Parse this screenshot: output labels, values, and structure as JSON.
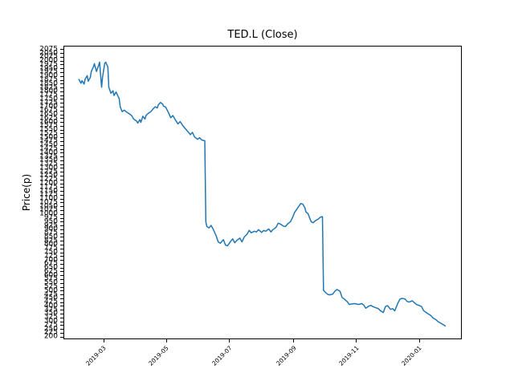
{
  "figure": {
    "background": "#ffffff",
    "axis_color": "#000000"
  },
  "chart_data": {
    "type": "line",
    "title": "TED.L (Close)",
    "xlabel": "",
    "ylabel": "Price(p)",
    "grid": false,
    "legend": "none",
    "line_color": "#1f77b4",
    "line_width": 1.5,
    "x_ticks": [
      "2019-03",
      "2019-05",
      "2019-07",
      "2019-09",
      "2019-11",
      "2020-01"
    ],
    "y_ticks": {
      "min": 200,
      "max": 2075,
      "step": 25
    },
    "xlim": [
      "2019-01-21",
      "2020-02-11"
    ],
    "ylim": [
      185,
      2100
    ],
    "series": [
      {
        "name": "Close",
        "x": [
          "2019-02-05",
          "2019-02-07",
          "2019-02-08",
          "2019-02-10",
          "2019-02-11",
          "2019-02-13",
          "2019-02-14",
          "2019-02-16",
          "2019-02-17",
          "2019-02-19",
          "2019-02-20",
          "2019-02-22",
          "2019-02-24",
          "2019-02-25",
          "2019-02-27",
          "2019-02-28",
          "2019-03-02",
          "2019-03-03",
          "2019-03-05",
          "2019-03-06",
          "2019-03-08",
          "2019-03-10",
          "2019-03-11",
          "2019-03-13",
          "2019-03-14",
          "2019-03-16",
          "2019-03-17",
          "2019-03-19",
          "2019-03-21",
          "2019-03-23",
          "2019-03-26",
          "2019-03-28",
          "2019-03-30",
          "2019-04-02",
          "2019-04-03",
          "2019-04-05",
          "2019-04-06",
          "2019-04-08",
          "2019-04-10",
          "2019-04-11",
          "2019-04-13",
          "2019-04-16",
          "2019-04-18",
          "2019-04-20",
          "2019-04-22",
          "2019-04-23",
          "2019-04-25",
          "2019-04-27",
          "2019-04-28",
          "2019-04-30",
          "2019-05-03",
          "2019-05-05",
          "2019-05-07",
          "2019-05-10",
          "2019-05-12",
          "2019-05-14",
          "2019-05-17",
          "2019-05-19",
          "2019-05-21",
          "2019-05-24",
          "2019-05-26",
          "2019-05-28",
          "2019-05-31",
          "2019-06-02",
          "2019-06-04",
          "2019-06-07",
          "2019-06-08",
          "2019-06-09",
          "2019-06-11",
          "2019-06-13",
          "2019-06-15",
          "2019-06-18",
          "2019-06-20",
          "2019-06-22",
          "2019-06-25",
          "2019-06-27",
          "2019-06-29",
          "2019-07-02",
          "2019-07-04",
          "2019-07-06",
          "2019-07-08",
          "2019-07-11",
          "2019-07-13",
          "2019-07-15",
          "2019-07-18",
          "2019-07-20",
          "2019-07-22",
          "2019-07-25",
          "2019-07-27",
          "2019-07-29",
          "2019-08-01",
          "2019-08-03",
          "2019-08-05",
          "2019-08-08",
          "2019-08-10",
          "2019-08-12",
          "2019-08-15",
          "2019-08-17",
          "2019-08-19",
          "2019-08-22",
          "2019-08-24",
          "2019-08-26",
          "2019-08-29",
          "2019-08-31",
          "2019-09-02",
          "2019-09-05",
          "2019-09-07",
          "2019-09-08",
          "2019-09-10",
          "2019-09-12",
          "2019-09-13",
          "2019-09-15",
          "2019-09-18",
          "2019-09-20",
          "2019-09-22",
          "2019-09-25",
          "2019-09-27",
          "2019-09-29",
          "2019-09-30",
          "2019-10-02",
          "2019-10-04",
          "2019-10-06",
          "2019-10-09",
          "2019-10-11",
          "2019-10-13",
          "2019-10-16",
          "2019-10-18",
          "2019-10-20",
          "2019-10-23",
          "2019-10-25",
          "2019-10-27",
          "2019-10-30",
          "2019-11-01",
          "2019-11-03",
          "2019-11-06",
          "2019-11-08",
          "2019-11-10",
          "2019-11-13",
          "2019-11-15",
          "2019-11-17",
          "2019-11-20",
          "2019-11-22",
          "2019-11-24",
          "2019-11-27",
          "2019-11-29",
          "2019-12-01",
          "2019-12-04",
          "2019-12-06",
          "2019-12-08",
          "2019-12-11",
          "2019-12-13",
          "2019-12-15",
          "2019-12-18",
          "2019-12-20",
          "2019-12-22",
          "2019-12-25",
          "2019-12-27",
          "2019-12-29",
          "2020-01-01",
          "2020-01-03",
          "2020-01-05",
          "2020-01-07",
          "2020-01-10",
          "2020-01-12",
          "2020-01-14",
          "2020-01-17",
          "2020-01-19",
          "2020-01-21",
          "2020-01-24",
          "2020-01-26"
        ],
        "y": [
          1880,
          1855,
          1872,
          1850,
          1882,
          1905,
          1868,
          1893,
          1932,
          1962,
          1983,
          1932,
          1970,
          1993,
          1829,
          1900,
          1985,
          1993,
          1960,
          1830,
          1790,
          1806,
          1775,
          1798,
          1783,
          1755,
          1700,
          1670,
          1680,
          1668,
          1655,
          1645,
          1622,
          1608,
          1595,
          1618,
          1600,
          1640,
          1622,
          1645,
          1658,
          1672,
          1690,
          1702,
          1694,
          1715,
          1730,
          1720,
          1706,
          1700,
          1660,
          1630,
          1645,
          1610,
          1590,
          1605,
          1575,
          1560,
          1545,
          1520,
          1535,
          1505,
          1490,
          1500,
          1485,
          1480,
          950,
          920,
          912,
          928,
          905,
          860,
          820,
          812,
          835,
          800,
          795,
          824,
          840,
          815,
          830,
          845,
          820,
          850,
          872,
          895,
          880,
          890,
          885,
          900,
          882,
          895,
          890,
          905,
          885,
          900,
          915,
          942,
          938,
          924,
          920,
          936,
          952,
          980,
          1012,
          1042,
          1062,
          1071,
          1066,
          1042,
          1015,
          1005,
          952,
          945,
          958,
          970,
          982,
          985,
          505,
          490,
          478,
          475,
          480,
          498,
          510,
          498,
          458,
          448,
          430,
          412,
          415,
          418,
          415,
          412,
          418,
          408,
          388,
          402,
          406,
          398,
          390,
          386,
          372,
          360,
          398,
          405,
          380,
          385,
          370,
          420,
          446,
          452,
          448,
          432,
          428,
          436,
          424,
          412,
          405,
          398,
          372,
          362,
          348,
          340,
          325,
          312,
          300,
          292,
          280,
          272
        ]
      }
    ]
  }
}
